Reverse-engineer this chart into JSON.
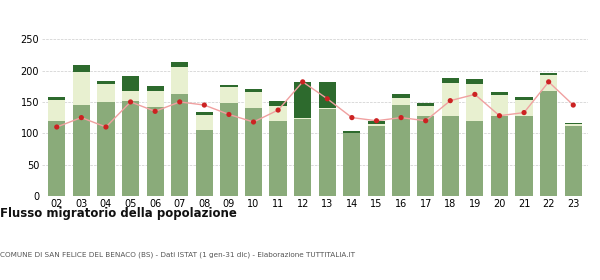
{
  "years": [
    "02",
    "03",
    "04",
    "05",
    "06",
    "07",
    "08",
    "09",
    "10",
    "11",
    "12",
    "13",
    "14",
    "15",
    "16",
    "17",
    "18",
    "19",
    "20",
    "21",
    "22",
    "23"
  ],
  "iscritti_altri_comuni": [
    120,
    145,
    150,
    152,
    142,
    162,
    105,
    148,
    140,
    120,
    122,
    138,
    100,
    112,
    145,
    128,
    128,
    120,
    128,
    128,
    168,
    112
  ],
  "iscritti_estero": [
    33,
    52,
    28,
    16,
    25,
    44,
    24,
    26,
    26,
    24,
    2,
    2,
    1,
    2,
    12,
    16,
    52,
    58,
    33,
    25,
    25,
    2
  ],
  "iscritti_altri": [
    5,
    12,
    5,
    24,
    8,
    8,
    5,
    3,
    5,
    8,
    58,
    42,
    3,
    5,
    5,
    5,
    8,
    8,
    5,
    5,
    3,
    3
  ],
  "cancellati": [
    110,
    125,
    110,
    150,
    135,
    150,
    145,
    130,
    118,
    137,
    182,
    155,
    125,
    120,
    125,
    120,
    152,
    162,
    128,
    133,
    182,
    145
  ],
  "color_altri_comuni": "#8aab7a",
  "color_estero": "#e8f0d0",
  "color_altri": "#2d6a2d",
  "color_cancellati": "#cc2222",
  "color_line": "#f0a0a0",
  "ylim": [
    0,
    250
  ],
  "yticks": [
    0,
    50,
    100,
    150,
    200,
    250
  ],
  "title": "Flusso migratorio della popolazione",
  "subtitle": "COMUNE DI SAN FELICE DEL BENACO (BS) - Dati ISTAT (1 gen-31 dic) - Elaborazione TUTTITALIA.IT",
  "background_color": "#ffffff"
}
